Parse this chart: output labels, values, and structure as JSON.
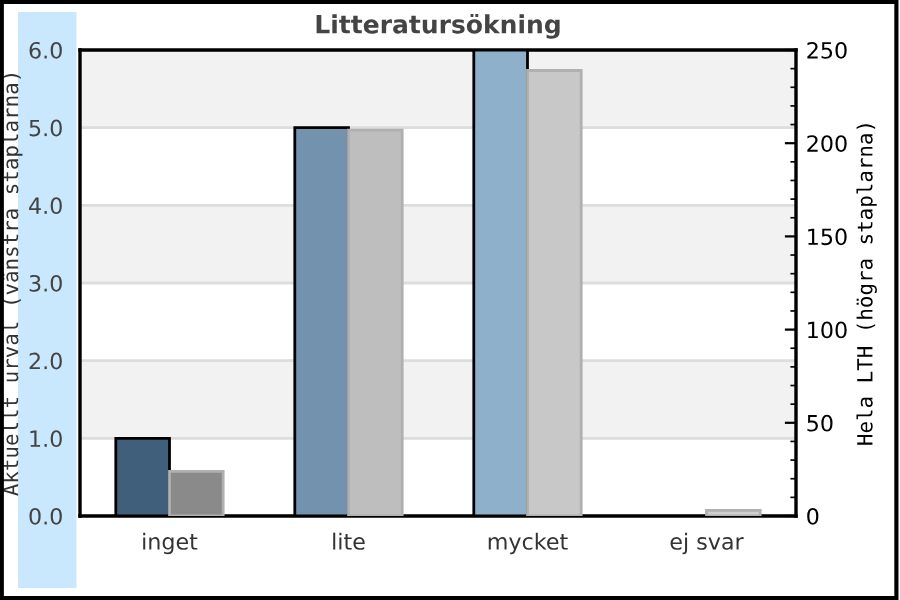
{
  "chart_data": {
    "type": "bar",
    "title": "Litteratursökning",
    "ylabel": "Aktuellt urval (vänstra staplarna)",
    "y2label": "Hela LTH (högra staplarna)",
    "categories": [
      "inget",
      "lite",
      "mycket",
      "ej svar"
    ],
    "series": [
      {
        "colors": [
          "#3f5f7a",
          "#7292ad",
          "#8fb0cb",
          "#8fb0cb"
        ],
        "values": [
          1.0,
          5.0,
          6.0,
          null
        ]
      },
      {
        "colors": [
          "#8a8a8a",
          "#bebebe",
          "#c8c8c8",
          "#d0d0d0"
        ],
        "values": [
          24,
          207,
          239,
          3
        ],
        "axis": "y2"
      }
    ],
    "ylim": [
      0,
      6
    ],
    "yticks": [
      {
        "value": 0,
        "label": "0.0"
      },
      {
        "value": 1,
        "label": "1.0"
      },
      {
        "value": 2,
        "label": "2.0"
      },
      {
        "value": 3,
        "label": "3.0"
      },
      {
        "value": 4,
        "label": "4.0"
      },
      {
        "value": 5,
        "label": "5.0"
      },
      {
        "value": 6,
        "label": "6.0"
      }
    ],
    "y2lim": [
      0,
      250
    ],
    "y2ticks": [
      0,
      50,
      100,
      150,
      200,
      250
    ],
    "bands": [
      {
        "axis": "y",
        "from": 1,
        "to": 2,
        "color": "#f2f2f2"
      },
      {
        "axis": "y",
        "from": 3,
        "to": 4,
        "color": "#f2f2f2"
      },
      {
        "axis": "y",
        "from": 5,
        "to": 6,
        "color": "#f2f2f2"
      }
    ],
    "grid": "y",
    "legend": false
  }
}
